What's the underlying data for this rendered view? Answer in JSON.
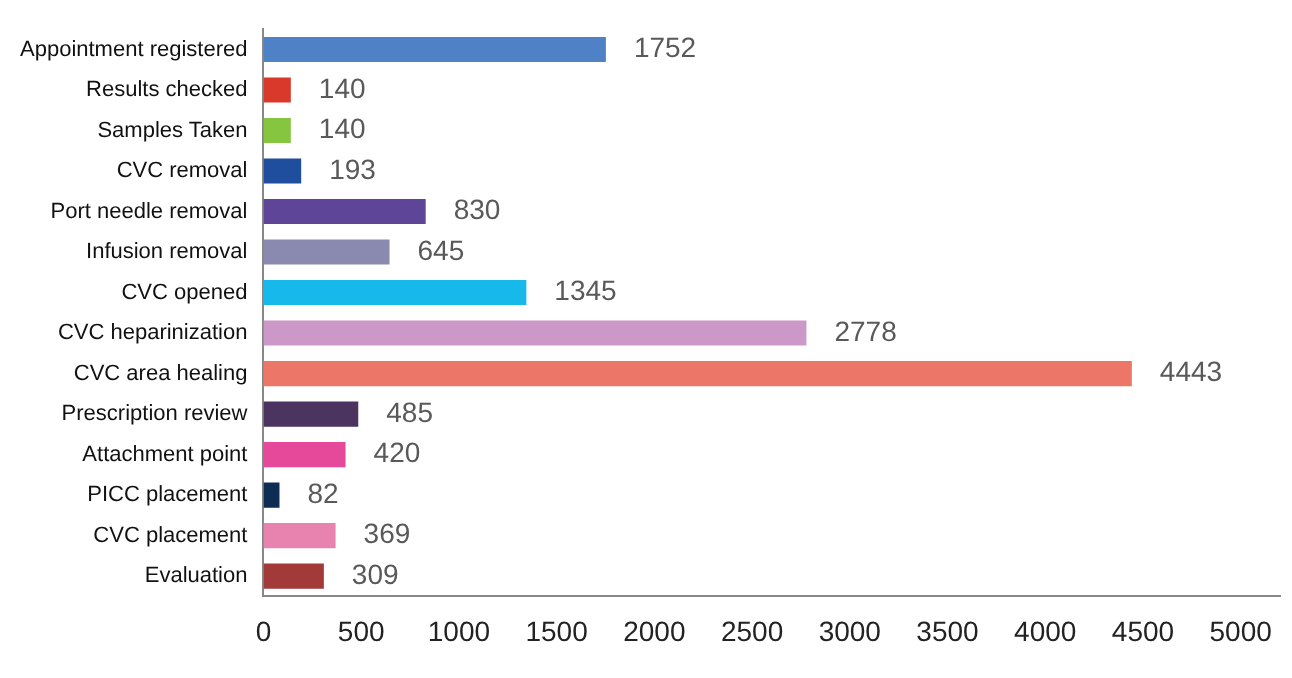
{
  "chart_data": {
    "type": "bar",
    "orientation": "horizontal",
    "categories": [
      "Appointment registered",
      "Results checked",
      "Samples Taken",
      "CVC removal",
      "Port needle removal",
      "Infusion removal",
      "CVC opened",
      "CVC heparinization",
      "CVC area healing",
      "Prescription review",
      "Attachment point",
      "PICC placement",
      "CVC placement",
      "Evaluation"
    ],
    "values": [
      1752,
      140,
      140,
      193,
      830,
      645,
      1345,
      2778,
      4443,
      485,
      420,
      82,
      369,
      309
    ],
    "colors": [
      "#4f81c7",
      "#d9392b",
      "#86c540",
      "#1f4e9e",
      "#5f4597",
      "#8a8ab0",
      "#16b9ea",
      "#cc98c8",
      "#ec7668",
      "#4b3560",
      "#e6489a",
      "#0f2d52",
      "#e783ae",
      "#a33a3a"
    ],
    "xlim": [
      0,
      5200
    ],
    "xticks": [
      0,
      500,
      1000,
      1500,
      2000,
      2500,
      3000,
      3500,
      4000,
      4500,
      5000
    ],
    "data_labels": true,
    "grid": false,
    "legend": false
  }
}
